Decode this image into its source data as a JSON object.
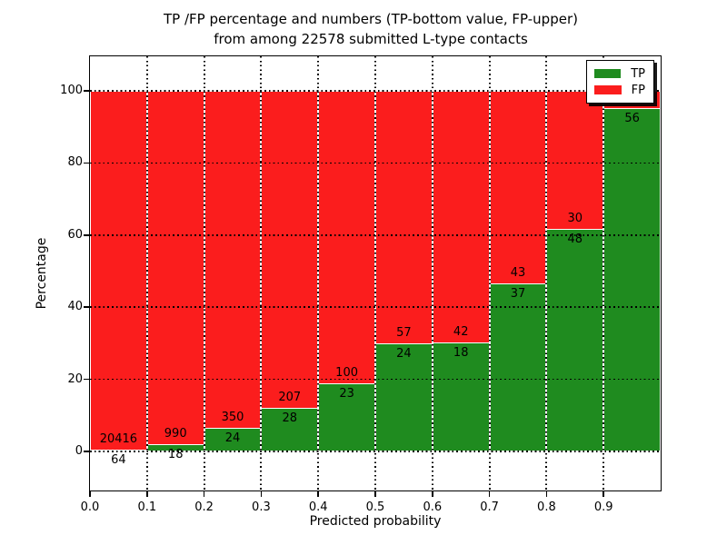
{
  "title": {
    "line1": "TP /FP percentage and numbers (TP-bottom value, FP-upper)",
    "line2": "from among 22578 submitted L-type contacts"
  },
  "axes": {
    "xlabel": "Predicted probability",
    "ylabel": "Percentage",
    "x_tick_labels": [
      "0.0",
      "0.1",
      "0.2",
      "0.3",
      "0.4",
      "0.5",
      "0.6",
      "0.7",
      "0.8",
      "0.9"
    ],
    "y_tick_labels": [
      "0",
      "20",
      "40",
      "60",
      "80",
      "100"
    ]
  },
  "legend": {
    "items": [
      {
        "label": "TP",
        "color": "#1f8b1f"
      },
      {
        "label": "FP",
        "color": "#fb1d1d"
      }
    ]
  },
  "colors": {
    "tp_green": "#1f8b1f",
    "fp_red": "#fb1d1d",
    "grid": "#000000",
    "background": "#ffffff",
    "text": "#000000"
  },
  "chart_data": {
    "type": "bar",
    "stacked": true,
    "note": "Each 0.1-wide probability bin normalized to 100%; TP (green) bottom segment, FP (red) top segment. Labels show raw counts: FP count above boundary, TP count below boundary. Total submitted contacts: 22578. FP count label of last bin hidden behind legend.",
    "title": "TP /FP percentage and numbers (TP-bottom value, FP-upper) from among 22578 submitted L-type contacts",
    "xlabel": "Predicted probability",
    "ylabel": "Percentage",
    "xlim": [
      0.0,
      1.0
    ],
    "ylim": [
      -10.8,
      109.6
    ],
    "grid": "dotted; horizontal at 0,20,40,60,80,100; vertical at each 0.1",
    "legend_position": "upper right",
    "bin_starts": [
      0.0,
      0.1,
      0.2,
      0.3,
      0.4,
      0.5,
      0.6,
      0.7,
      0.8,
      0.9
    ],
    "series": [
      {
        "name": "TP",
        "color": "#1f8b1f",
        "counts": [
          64,
          18,
          24,
          28,
          23,
          24,
          18,
          37,
          48,
          56
        ]
      },
      {
        "name": "FP",
        "color": "#fb1d1d",
        "counts": [
          20416,
          990,
          350,
          207,
          100,
          57,
          42,
          43,
          30,
          null
        ]
      }
    ],
    "tp_percent": [
      0.31,
      1.79,
      6.42,
      11.91,
      18.7,
      29.63,
      30.0,
      46.25,
      61.54,
      94.9
    ],
    "tp_labels": [
      "64",
      "18",
      "24",
      "28",
      "23",
      "24",
      "18",
      "37",
      "48",
      "56"
    ],
    "fp_labels": [
      "20416",
      "990",
      "350",
      "207",
      "100",
      "57",
      "42",
      "43",
      "30",
      ""
    ],
    "total_submitted": 22578
  }
}
